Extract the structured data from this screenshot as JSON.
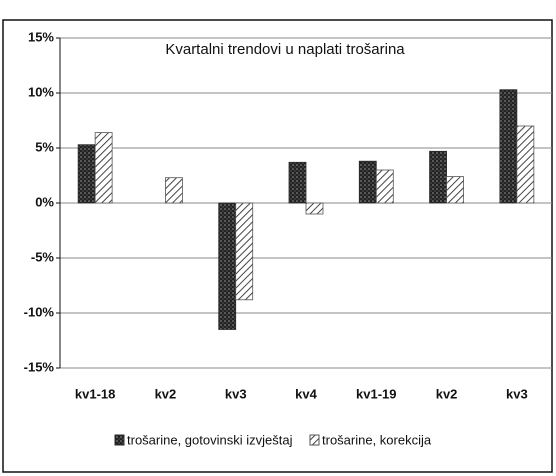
{
  "chart_data": {
    "type": "bar",
    "title": "Kvartalni trendovi  u naplati trošarina",
    "categories": [
      "kv1-18",
      "kv2",
      "kv3",
      "kv4",
      "kv1-19",
      "kv2",
      "kv3"
    ],
    "series": [
      {
        "name": "trošarine, gotovinski izvještaj",
        "color": "#2b2b2b",
        "values": [
          5.3,
          0,
          -11.5,
          3.7,
          3.8,
          4.7,
          10.3
        ]
      },
      {
        "name": "trošarine, korekcija",
        "color": "#555555",
        "values": [
          6.4,
          2.3,
          -8.8,
          -1.0,
          3.0,
          2.4,
          7.0
        ]
      }
    ],
    "ylim": [
      -15,
      15
    ],
    "yticks": [
      {
        "value": -15,
        "label": "-15%"
      },
      {
        "value": -10,
        "label": "-10%"
      },
      {
        "value": -5,
        "label": "-5%"
      },
      {
        "value": 0,
        "label": "0%"
      },
      {
        "value": 5,
        "label": "5%"
      },
      {
        "value": 10,
        "label": "10%"
      },
      {
        "value": 15,
        "label": "15%"
      }
    ],
    "grid": true,
    "legend": "bottom"
  }
}
